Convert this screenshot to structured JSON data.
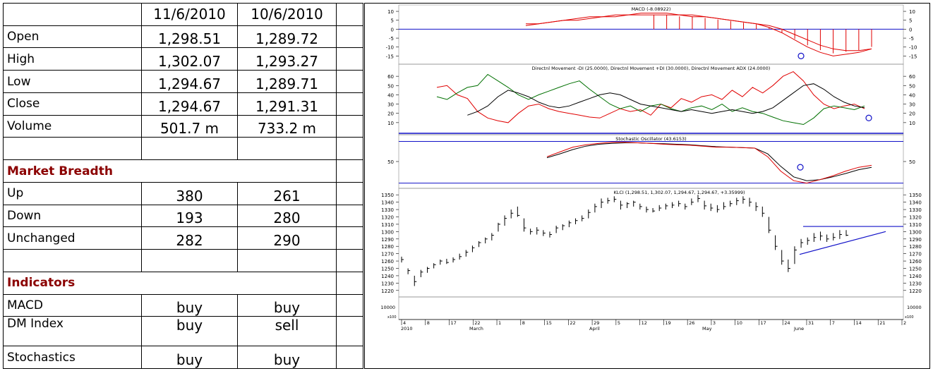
{
  "table": {
    "date1": "11/6/2010",
    "date2": "10/6/2010",
    "rows": [
      {
        "label": "Open",
        "v1": "1,298.51",
        "v2": "1,289.72"
      },
      {
        "label": "High",
        "v1": "1,302.07",
        "v2": "1,293.27"
      },
      {
        "label": "Low",
        "v1": "1,294.67",
        "v2": "1,289.71"
      },
      {
        "label": "Close",
        "v1": "1,294.67",
        "v2": "1,291.31"
      },
      {
        "label": "Volume",
        "v1": "501.7 m",
        "v2": "733.2 m"
      }
    ],
    "breadth_title": "Market Breadth",
    "breadth": [
      {
        "label": "Up",
        "v1": "380",
        "v2": "261"
      },
      {
        "label": "Down",
        "v1": "193",
        "v2": "280"
      },
      {
        "label": "Unchanged",
        "v1": "282",
        "v2": "290"
      }
    ],
    "indicators_title": "Indicators",
    "indicators": [
      {
        "label": "MACD",
        "v1": "buy",
        "v2": "buy"
      },
      {
        "label": "DM Index",
        "v1": "buy",
        "v2": "sell"
      },
      {
        "label": "Stochastics",
        "v1": "buy",
        "v2": "buy"
      }
    ]
  },
  "chart_data": [
    {
      "type": "line",
      "title": "MACD (-8.08922)",
      "ylim": [
        -18,
        12
      ],
      "yticks": [
        10,
        5,
        0,
        -5,
        -10,
        -15
      ],
      "series": [
        {
          "color": "#e00000",
          "values": [
            2,
            3,
            4,
            5,
            6,
            7,
            7,
            8,
            8,
            9,
            9,
            9,
            8,
            8,
            7,
            6,
            5,
            4,
            3,
            1,
            -2,
            -6,
            -10,
            -13,
            -15,
            -14,
            -13,
            -11
          ]
        },
        {
          "color": "#e00000",
          "values": [
            3,
            3,
            4,
            5,
            5,
            6,
            7,
            7,
            8,
            8,
            8,
            8,
            8,
            7,
            7,
            6,
            5,
            4,
            3,
            2,
            0,
            -3,
            -6,
            -9,
            -11,
            -12,
            -12,
            -11
          ]
        }
      ]
    },
    {
      "type": "line",
      "title": "Directnl Movement -DI (25.0000), Directnl Movement +DI (30.0000), Directnl Movement ADX (24.0000)",
      "ylim": [
        0,
        70
      ],
      "yticks": [
        60,
        50,
        40,
        30,
        20,
        10
      ],
      "series": [
        {
          "color": "#e00000",
          "values": [
            48,
            50,
            40,
            36,
            22,
            15,
            12,
            10,
            20,
            28,
            30,
            25,
            22,
            20,
            18,
            16,
            15,
            20,
            25,
            22,
            24,
            18,
            30,
            26,
            36,
            32,
            38,
            40,
            35,
            45,
            38,
            48,
            42,
            50,
            60,
            65,
            55,
            40,
            30,
            25,
            28,
            30,
            25
          ]
        },
        {
          "color": "#007000",
          "values": [
            38,
            35,
            42,
            48,
            50,
            62,
            55,
            48,
            40,
            35,
            40,
            44,
            48,
            52,
            55,
            46,
            38,
            30,
            25,
            28,
            22,
            28,
            30,
            25,
            22,
            26,
            28,
            24,
            30,
            22,
            26,
            22,
            20,
            16,
            12,
            10,
            8,
            15,
            25,
            28,
            26,
            24,
            28
          ]
        },
        {
          "color": "#000000",
          "values": [
            null,
            null,
            null,
            18,
            22,
            28,
            38,
            45,
            42,
            38,
            32,
            28,
            26,
            28,
            32,
            36,
            40,
            42,
            40,
            35,
            30,
            28,
            26,
            24,
            22,
            24,
            22,
            20,
            22,
            24,
            22,
            20,
            22,
            26,
            34,
            42,
            50,
            52,
            46,
            38,
            32,
            28,
            26
          ]
        }
      ]
    },
    {
      "type": "line",
      "title": "Stochastic Oscillator (43.6153)",
      "ylim": [
        0,
        100
      ],
      "yticks": [
        50
      ],
      "series": [
        {
          "color": "#e00000",
          "values": [
            60,
            70,
            80,
            85,
            88,
            90,
            90,
            89,
            88,
            86,
            85,
            84,
            82,
            80,
            80,
            79,
            78,
            60,
            30,
            10,
            5,
            12,
            20,
            30,
            38,
            42
          ]
        },
        {
          "color": "#000000",
          "values": [
            58,
            66,
            75,
            82,
            86,
            88,
            89,
            89,
            88,
            87,
            86,
            85,
            83,
            81,
            80,
            79,
            78,
            66,
            40,
            18,
            10,
            12,
            18,
            25,
            33,
            38
          ]
        }
      ]
    },
    {
      "type": "bar",
      "title": "KLCI (1,298.51, 1,302.07, 1,294.67, 1,294.67, +3.35999)",
      "ylim": [
        1215,
        1355
      ],
      "yticks": [
        1350,
        1340,
        1330,
        1320,
        1310,
        1300,
        1290,
        1280,
        1270,
        1260,
        1250,
        1240,
        1230,
        1220
      ],
      "ohlc": [
        [
          1266,
          1258,
          1262
        ],
        [
          1250,
          1242,
          1247
        ],
        [
          1240,
          1226,
          1232
        ],
        [
          1248,
          1238,
          1245
        ],
        [
          1252,
          1244,
          1250
        ],
        [
          1257,
          1250,
          1255
        ],
        [
          1262,
          1255,
          1260
        ],
        [
          1263,
          1256,
          1258
        ],
        [
          1265,
          1258,
          1262
        ],
        [
          1270,
          1262,
          1266
        ],
        [
          1275,
          1266,
          1272
        ],
        [
          1281,
          1272,
          1278
        ],
        [
          1287,
          1279,
          1285
        ],
        [
          1292,
          1284,
          1290
        ],
        [
          1298,
          1288,
          1295
        ],
        [
          1312,
          1300,
          1310
        ],
        [
          1322,
          1308,
          1318
        ],
        [
          1330,
          1318,
          1325
        ],
        [
          1334,
          1320,
          1322
        ],
        [
          1318,
          1300,
          1305
        ],
        [
          1304,
          1296,
          1300
        ],
        [
          1306,
          1296,
          1302
        ],
        [
          1302,
          1294,
          1298
        ],
        [
          1300,
          1292,
          1296
        ],
        [
          1308,
          1298,
          1305
        ],
        [
          1310,
          1302,
          1308
        ],
        [
          1315,
          1306,
          1312
        ],
        [
          1318,
          1310,
          1315
        ],
        [
          1322,
          1314,
          1318
        ],
        [
          1330,
          1318,
          1326
        ],
        [
          1338,
          1326,
          1334
        ],
        [
          1345,
          1332,
          1340
        ],
        [
          1346,
          1338,
          1342
        ],
        [
          1348,
          1340,
          1344
        ],
        [
          1342,
          1330,
          1336
        ],
        [
          1340,
          1332,
          1338
        ],
        [
          1342,
          1334,
          1340
        ],
        [
          1338,
          1330,
          1334
        ],
        [
          1334,
          1326,
          1330
        ],
        [
          1332,
          1326,
          1328
        ],
        [
          1336,
          1328,
          1332
        ],
        [
          1338,
          1330,
          1335
        ],
        [
          1340,
          1332,
          1336
        ],
        [
          1342,
          1334,
          1338
        ],
        [
          1338,
          1330,
          1334
        ],
        [
          1345,
          1336,
          1340
        ],
        [
          1350,
          1340,
          1345
        ],
        [
          1342,
          1330,
          1335
        ],
        [
          1338,
          1328,
          1332
        ],
        [
          1336,
          1326,
          1330
        ],
        [
          1340,
          1330,
          1334
        ],
        [
          1342,
          1334,
          1338
        ],
        [
          1346,
          1336,
          1342
        ],
        [
          1348,
          1338,
          1344
        ],
        [
          1346,
          1334,
          1340
        ],
        [
          1340,
          1328,
          1334
        ],
        [
          1334,
          1320,
          1325
        ],
        [
          1320,
          1298,
          1302
        ],
        [
          1295,
          1275,
          1280
        ],
        [
          1275,
          1255,
          1260
        ],
        [
          1262,
          1245,
          1250
        ],
        [
          1280,
          1256,
          1275
        ],
        [
          1290,
          1278,
          1285
        ],
        [
          1292,
          1282,
          1288
        ],
        [
          1298,
          1286,
          1292
        ],
        [
          1300,
          1288,
          1294
        ],
        [
          1296,
          1286,
          1290
        ],
        [
          1298,
          1288,
          1292
        ],
        [
          1302,
          1290,
          1296
        ],
        [
          1302,
          1294,
          1295
        ]
      ]
    },
    {
      "type": "bar",
      "title": "",
      "ylim": [
        0,
        14000
      ],
      "yticks": [
        10000
      ],
      "ylabel": "x100",
      "values": [
        6,
        4,
        9,
        3,
        3,
        2,
        3,
        2,
        4,
        5,
        3,
        4,
        10,
        5,
        4,
        6,
        5,
        12,
        8,
        3,
        6,
        3,
        4,
        3,
        5,
        3,
        8,
        3,
        5,
        14,
        16,
        15,
        8,
        6,
        4,
        8,
        5,
        10,
        14,
        16,
        5,
        9,
        15,
        12,
        8,
        6,
        4,
        5,
        6,
        4,
        6,
        7,
        5,
        4,
        6,
        8,
        7,
        9,
        5,
        4,
        8,
        7,
        9,
        6,
        5,
        4,
        8,
        9,
        7,
        5,
        6,
        4,
        7,
        10,
        5,
        3,
        7,
        9,
        4,
        3,
        4,
        6,
        5,
        3,
        3,
        2,
        3,
        2
      ]
    }
  ],
  "xaxis": {
    "year": "2010",
    "labels": [
      "4",
      "8",
      "17",
      "22",
      "1",
      "8",
      "15",
      "22",
      "29",
      "5",
      "12",
      "19",
      "26",
      "3",
      "10",
      "17",
      "24",
      "31",
      "7",
      "14",
      "21",
      "2"
    ],
    "months": [
      "March",
      "April",
      "May",
      "June"
    ]
  },
  "annotations": {
    "circle_label": "O"
  }
}
